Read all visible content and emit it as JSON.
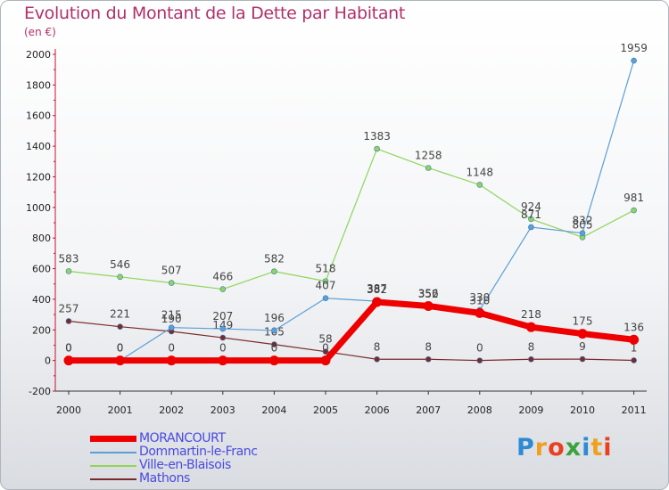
{
  "chart_data": {
    "type": "line",
    "title": "Evolution du Montant de la Dette par Habitant",
    "unit_label": "(en €)",
    "x": [
      "2000",
      "2001",
      "2002",
      "2003",
      "2004",
      "2005",
      "2006",
      "2007",
      "2008",
      "2009",
      "2010",
      "2011"
    ],
    "ylim": [
      -200,
      2000
    ],
    "yticks": [
      -200,
      0,
      200,
      400,
      600,
      800,
      1000,
      1200,
      1400,
      1600,
      1800,
      2000
    ],
    "grid": false,
    "legend_position": "bottom-left",
    "series": [
      {
        "name": "Ville-en-Blaisois",
        "color": "#8fd55a",
        "width": 1.2,
        "values": [
          583,
          546,
          507,
          466,
          582,
          518,
          1383,
          1258,
          1148,
          924,
          805,
          981
        ],
        "labels": [
          "583",
          "546",
          "507",
          "466",
          "582",
          "518",
          "1383",
          "1258",
          "1148",
          "924",
          "805",
          "981"
        ]
      },
      {
        "name": "Mathons",
        "color": "#7a2a2a",
        "width": 1.2,
        "values": [
          257,
          221,
          190,
          149,
          105,
          58,
          8,
          8,
          0,
          8,
          9,
          1
        ],
        "labels": [
          "257",
          "221",
          "190",
          "149",
          "105",
          "58",
          "8",
          "8",
          "0",
          "8",
          "9",
          "1"
        ]
      },
      {
        "name": "Dommartin-le-Franc",
        "color": "#5b9fd6",
        "width": 1.2,
        "values": [
          0,
          0,
          215,
          207,
          196,
          407,
          387,
          352,
          330,
          871,
          832,
          1959
        ],
        "labels": [
          "0",
          "0",
          "215",
          "207",
          "196",
          "407",
          "387",
          "352",
          "330",
          "871",
          "832",
          "1959"
        ]
      },
      {
        "name": "MORANCOURT",
        "color": "#ee0000",
        "width": 7,
        "values": [
          0,
          0,
          0,
          0,
          0,
          0,
          382,
          356,
          310,
          218,
          175,
          136
        ],
        "labels": [
          "0",
          "0",
          "0",
          "0",
          "0",
          "0",
          "382",
          "356",
          "310",
          "218",
          "175",
          "136"
        ]
      }
    ]
  },
  "legend": {
    "items": [
      {
        "label": "MORANCOURT",
        "color": "#ee0000"
      },
      {
        "label": "Dommartin-le-Franc",
        "color": "#5b9fd6"
      },
      {
        "label": "Ville-en-Blaisois",
        "color": "#8fd55a"
      },
      {
        "label": "Mathons",
        "color": "#7a2a2a"
      }
    ]
  },
  "brand": {
    "text": "Proxiti",
    "letters": [
      {
        "ch": "P",
        "color": "#2e8bd3"
      },
      {
        "ch": "r",
        "color": "#f0a020"
      },
      {
        "ch": "o",
        "color": "#e9401f"
      },
      {
        "ch": "x",
        "color": "#3aa33a"
      },
      {
        "ch": "i",
        "color": "#2e8bd3"
      },
      {
        "ch": "t",
        "color": "#f0a020"
      },
      {
        "ch": "i",
        "color": "#e9401f"
      }
    ]
  }
}
